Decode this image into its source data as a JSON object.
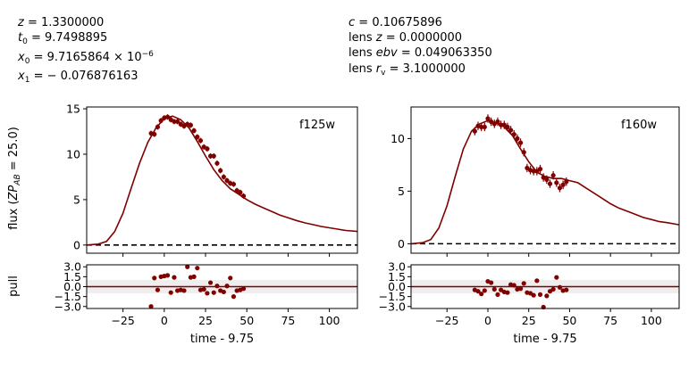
{
  "header": {
    "left_lines": [
      [
        "z",
        " = 1.3300000"
      ],
      [
        "t",
        "0",
        " = 9.7498895"
      ],
      [
        "x",
        "0",
        " = 9.7165864 × 10",
        "−6"
      ],
      [
        "x",
        "1",
        " = − 0.076876163"
      ]
    ],
    "right_lines": [
      [
        "c",
        " = 0.10675896"
      ],
      [
        "lens z",
        " = 0.0000000"
      ],
      [
        "lens ebv",
        " = 0.049063350"
      ],
      [
        "lens r",
        "v",
        " = 3.1000000"
      ]
    ]
  },
  "ylabel_flux": "flux (ZP_AB = 25.0)",
  "ylabel_pull": "pull",
  "colors": {
    "model": "#800000",
    "data": "#800000",
    "band": "#eeeeee",
    "zero": "#000000"
  },
  "chart_data": [
    {
      "type": "line",
      "band_label": "f125w",
      "xlabel": "time - 9.75",
      "xlim": [
        -47,
        117
      ],
      "ylim": [
        -0.9,
        15.2
      ],
      "x_ticks": [
        -25,
        0,
        25,
        50,
        75,
        100
      ],
      "y_ticks": [
        0,
        5,
        10,
        15
      ],
      "model_x": [
        -47,
        -40,
        -35,
        -30,
        -25,
        -20,
        -15,
        -10,
        -5,
        0,
        5,
        10,
        15,
        20,
        25,
        30,
        35,
        40,
        45,
        50,
        55,
        60,
        65,
        70,
        75,
        80,
        85,
        90,
        95,
        100,
        105,
        110,
        117
      ],
      "model_y": [
        0,
        0.1,
        0.4,
        1.5,
        3.5,
        6.3,
        9.0,
        11.3,
        12.9,
        13.9,
        14.2,
        13.8,
        12.9,
        11.4,
        9.8,
        8.3,
        7.1,
        6.2,
        5.6,
        5.0,
        4.5,
        4.1,
        3.7,
        3.3,
        3.0,
        2.7,
        2.45,
        2.25,
        2.05,
        1.9,
        1.75,
        1.6,
        1.5
      ],
      "points_x": [
        -8,
        -6,
        -4,
        -2,
        0,
        2,
        4,
        6,
        8,
        10,
        12,
        14,
        16,
        18,
        20,
        22,
        24,
        26,
        28,
        30,
        32,
        34,
        36,
        38,
        40,
        42,
        44,
        46,
        48
      ],
      "points_y": [
        12.3,
        12.2,
        13.0,
        13.7,
        14.0,
        14.1,
        13.8,
        13.6,
        13.6,
        13.3,
        13.1,
        13.3,
        13.2,
        12.6,
        11.9,
        11.5,
        10.8,
        10.6,
        9.8,
        9.8,
        9.0,
        8.2,
        7.5,
        7.1,
        6.8,
        6.7,
        6.0,
        5.8,
        5.4
      ],
      "points_err": [
        0.3,
        0.3,
        0.3,
        0.3,
        0.3,
        0.3,
        0.3,
        0.3,
        0.3,
        0.3,
        0.3,
        0.3,
        0.3,
        0.3,
        0.3,
        0.3,
        0.3,
        0.3,
        0.3,
        0.3,
        0.3,
        0.3,
        0.3,
        0.3,
        0.3,
        0.3,
        0.3,
        0.3,
        0.3
      ],
      "pull_ylim": [
        -3.3,
        3.3
      ],
      "pull_ticks": [
        3.0,
        1.5,
        0.0,
        -1.5,
        -3.0
      ],
      "pull_tick_labels": [
        "3.0",
        "1.5",
        "0.0",
        "−1.5",
        "−3.0"
      ],
      "pull_x": [
        -8,
        -6,
        -4,
        -2,
        0,
        2,
        4,
        6,
        8,
        10,
        12,
        14,
        16,
        18,
        20,
        22,
        24,
        26,
        28,
        30,
        32,
        34,
        36,
        38,
        40,
        42,
        44,
        46,
        48
      ],
      "pull_y": [
        -3.0,
        1.3,
        -0.5,
        1.5,
        1.6,
        1.7,
        -0.9,
        1.4,
        -0.6,
        -0.5,
        -0.6,
        3.0,
        1.4,
        1.5,
        2.8,
        -0.5,
        -0.4,
        -1.0,
        0.6,
        -0.9,
        0.1,
        -0.6,
        -0.8,
        0.1,
        1.3,
        -1.5,
        -0.6,
        -0.5,
        -0.3
      ]
    },
    {
      "type": "line",
      "band_label": "f160w",
      "xlabel": "time - 9.75",
      "xlim": [
        -47,
        117
      ],
      "ylim": [
        -0.9,
        13.0
      ],
      "x_ticks": [
        -25,
        0,
        25,
        50,
        75,
        100
      ],
      "y_ticks": [
        0,
        5,
        10
      ],
      "model_x": [
        -47,
        -40,
        -35,
        -30,
        -25,
        -20,
        -15,
        -10,
        -5,
        0,
        5,
        10,
        15,
        20,
        25,
        30,
        35,
        40,
        45,
        50,
        55,
        60,
        65,
        70,
        75,
        80,
        85,
        90,
        95,
        100,
        105,
        110,
        117
      ],
      "model_y": [
        0,
        0.1,
        0.4,
        1.5,
        3.6,
        6.4,
        9.0,
        10.7,
        11.4,
        11.7,
        11.5,
        11.1,
        10.3,
        9.0,
        7.8,
        6.8,
        6.4,
        6.2,
        6.2,
        6.0,
        5.8,
        5.3,
        4.8,
        4.3,
        3.8,
        3.4,
        3.1,
        2.8,
        2.5,
        2.3,
        2.1,
        2.0,
        1.8
      ],
      "points_x": [
        -8,
        -6,
        -4,
        -2,
        0,
        2,
        4,
        6,
        8,
        10,
        12,
        14,
        16,
        18,
        20,
        22,
        24,
        26,
        28,
        30,
        32,
        34,
        36,
        38,
        40,
        42,
        44,
        46,
        48
      ],
      "points_y": [
        10.7,
        11.2,
        11.1,
        11.1,
        11.9,
        11.6,
        11.4,
        11.6,
        11.3,
        11.3,
        11.1,
        10.8,
        10.4,
        10.0,
        9.6,
        8.7,
        7.2,
        7.0,
        6.9,
        6.9,
        7.1,
        6.3,
        6.1,
        5.7,
        6.5,
        5.8,
        5.3,
        5.6,
        5.9
      ],
      "points_err": [
        0.4,
        0.4,
        0.4,
        0.4,
        0.4,
        0.4,
        0.4,
        0.4,
        0.4,
        0.4,
        0.4,
        0.4,
        0.4,
        0.4,
        0.4,
        0.4,
        0.4,
        0.4,
        0.4,
        0.4,
        0.4,
        0.4,
        0.4,
        0.4,
        0.4,
        0.4,
        0.4,
        0.4,
        0.4
      ],
      "pull_ylim": [
        -3.3,
        3.3
      ],
      "pull_ticks": [
        3.0,
        1.5,
        0.0,
        -1.5,
        -3.0
      ],
      "pull_tick_labels": [
        "3.0",
        "1.5",
        "0.0",
        "−1.5",
        "−3.0"
      ],
      "pull_x": [
        -8,
        -6,
        -4,
        -2,
        0,
        2,
        4,
        6,
        8,
        10,
        12,
        14,
        16,
        18,
        20,
        22,
        24,
        26,
        28,
        30,
        32,
        34,
        36,
        38,
        40,
        42,
        44,
        46,
        48
      ],
      "pull_y": [
        -0.5,
        -0.7,
        -1.1,
        -0.6,
        0.8,
        0.6,
        -0.4,
        -1.2,
        -0.5,
        -0.8,
        -0.9,
        0.3,
        0.2,
        -0.4,
        -0.3,
        0.5,
        -0.9,
        -1.0,
        -1.3,
        0.9,
        -1.2,
        -3.1,
        -1.4,
        -0.7,
        -0.4,
        1.4,
        -0.1,
        -0.6,
        -0.5
      ]
    }
  ]
}
